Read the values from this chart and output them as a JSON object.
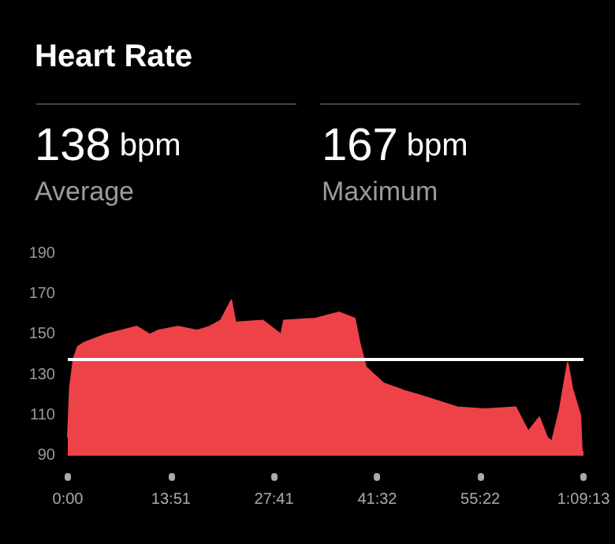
{
  "chart_data": {
    "type": "area",
    "title": "Heart Rate",
    "annotations": [
      "138 bpm",
      "Average",
      "167 bpm",
      "Maximum"
    ],
    "x": [
      0,
      17,
      47,
      80,
      131,
      301,
      555,
      660,
      724,
      889,
      1041,
      1143,
      1232,
      1317,
      1350,
      1571,
      1718,
      1740,
      1994,
      2184,
      2311,
      2350,
      2400,
      2540,
      2718,
      2883,
      3137,
      3353,
      3607,
      3708,
      3797,
      3861,
      3899,
      3962,
      4026,
      4064,
      4128,
      4140,
      4153
    ],
    "values": [
      99,
      124,
      138,
      144,
      146,
      150,
      154,
      150,
      152,
      154,
      152,
      154,
      157,
      167,
      156,
      157,
      150,
      157,
      158,
      161,
      158,
      146,
      134,
      126,
      122,
      119,
      114,
      113,
      114,
      102,
      109,
      99,
      97,
      113,
      136,
      123,
      110,
      92,
      92
    ],
    "color": "#ee4249",
    "xlim": [
      0,
      4153
    ],
    "xticks": [
      {
        "value": 0,
        "label": "0:00"
      },
      {
        "value": 831,
        "label": "13:51"
      },
      {
        "value": 1661,
        "label": "27:41"
      },
      {
        "value": 2492,
        "label": "41:32"
      },
      {
        "value": 3322,
        "label": "55:22"
      },
      {
        "value": 4153,
        "label": "1:09:13"
      }
    ],
    "ylim": [
      90,
      190
    ],
    "yticks": [
      90,
      110,
      130,
      150,
      170,
      190
    ],
    "ref_lines": [
      {
        "axis": "y",
        "value": 138,
        "color": "#ffffff"
      }
    ]
  }
}
